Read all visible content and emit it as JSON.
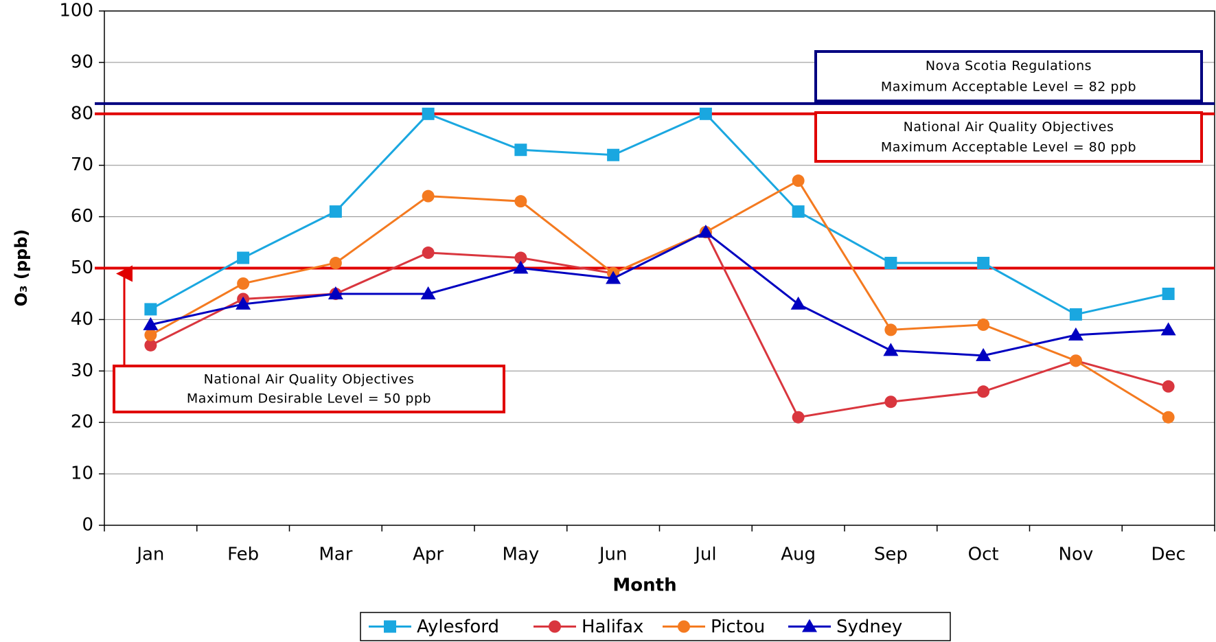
{
  "chart_data": {
    "type": "line",
    "x_label": "Month",
    "y_label": "O₃ (ppb)",
    "categories": [
      "Jan",
      "Feb",
      "Mar",
      "Apr",
      "May",
      "Jun",
      "Jul",
      "Aug",
      "Sep",
      "Oct",
      "Nov",
      "Dec"
    ],
    "series": [
      {
        "name": "Aylesford",
        "color": "#1aa7e0",
        "marker": "square",
        "values": [
          42,
          52,
          61,
          80,
          73,
          72,
          80,
          61,
          51,
          51,
          41,
          45
        ]
      },
      {
        "name": "Halifax",
        "color": "#d9363e",
        "marker": "circle",
        "values": [
          35,
          44,
          45,
          53,
          52,
          49,
          57,
          21,
          24,
          26,
          32,
          27
        ]
      },
      {
        "name": "Pictou",
        "color": "#f47a20",
        "marker": "circle",
        "values": [
          37,
          47,
          51,
          64,
          63,
          49,
          57,
          67,
          38,
          39,
          32,
          21
        ]
      },
      {
        "name": "Sydney",
        "color": "#0000c0",
        "marker": "triangle",
        "values": [
          39,
          43,
          45,
          45,
          50,
          48,
          57,
          43,
          34,
          33,
          37,
          38
        ]
      }
    ],
    "ylim": [
      0,
      100
    ],
    "yticks": [
      0,
      10,
      20,
      30,
      40,
      50,
      60,
      70,
      80,
      90,
      100
    ],
    "grid": true,
    "legend": "bottom",
    "ref_lines": [
      {
        "value": 82,
        "color": "#000080",
        "label": [
          "Nova Scotia Regulations",
          "Maximum Acceptable Level = 82 ppb"
        ]
      },
      {
        "value": 80,
        "color": "#e00000",
        "label": [
          "National Air Quality Objectives",
          "Maximum Acceptable Level = 80 ppb"
        ]
      },
      {
        "value": 50,
        "color": "#e00000",
        "label": [
          "National Air Quality Objectives",
          "Maximum Desirable Level = 50 ppb"
        ]
      }
    ]
  }
}
